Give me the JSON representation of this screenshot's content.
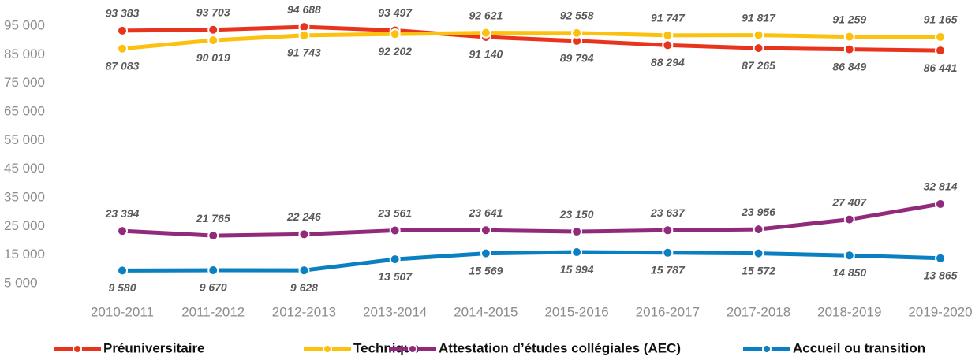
{
  "chart_data": {
    "type": "line",
    "categories": [
      "2010-2011",
      "2011-2012",
      "2012-2013",
      "2013-2014",
      "2014-2015",
      "2015-2016",
      "2016-2017",
      "2017-2018",
      "2018-2019",
      "2019-2020"
    ],
    "ylim": [
      5000,
      95000
    ],
    "yticks": [
      {
        "value": 5000,
        "label": "5 000"
      },
      {
        "value": 15000,
        "label": "15 000"
      },
      {
        "value": 25000,
        "label": "25 000"
      },
      {
        "value": 35000,
        "label": "35 000"
      },
      {
        "value": 45000,
        "label": "45 000"
      },
      {
        "value": 55000,
        "label": "55 000"
      },
      {
        "value": 65000,
        "label": "65 000"
      },
      {
        "value": 75000,
        "label": "75 000"
      },
      {
        "value": 85000,
        "label": "85 000"
      },
      {
        "value": 95000,
        "label": "95 000"
      }
    ],
    "grid": false,
    "legend": "bottom",
    "series": [
      {
        "name": "Préuniversitaire",
        "color": "#e8341c",
        "values": [
          93383,
          93703,
          94688,
          93497,
          91140,
          89794,
          88294,
          87265,
          86849,
          86441
        ],
        "value_labels": [
          "93 383",
          "93 703",
          "94 688",
          "93 497",
          "91 140",
          "89 794",
          "88 294",
          "87 265",
          "86 849",
          "86 441"
        ]
      },
      {
        "name": "Technique",
        "color": "#fcc10e",
        "values": [
          87083,
          90019,
          91743,
          92202,
          92621,
          92558,
          91747,
          91817,
          91259,
          91165
        ],
        "value_labels": [
          "87 083",
          "90 019",
          "91 743",
          "92 202",
          "92 621",
          "92 558",
          "91 747",
          "91 817",
          "91 259",
          "91 165"
        ]
      },
      {
        "name": "Attestation d’études collégiales (AEC)",
        "color": "#922a7c",
        "values": [
          23394,
          21765,
          22246,
          23561,
          23641,
          23150,
          23637,
          23956,
          27407,
          32814
        ],
        "value_labels": [
          "23 394",
          "21 765",
          "22 246",
          "23 561",
          "23 641",
          "23 150",
          "23 637",
          "23 956",
          "27 407",
          "32 814"
        ]
      },
      {
        "name": "Accueil ou transition",
        "color": "#0a7fc1",
        "values": [
          9580,
          9670,
          9628,
          13507,
          15569,
          15994,
          15787,
          15572,
          14850,
          13865
        ],
        "value_labels": [
          "9 580",
          "9 670",
          "9 628",
          "13 507",
          "15 569",
          "15 994",
          "15 787",
          "15 572",
          "14 850",
          "13 865"
        ]
      }
    ]
  }
}
